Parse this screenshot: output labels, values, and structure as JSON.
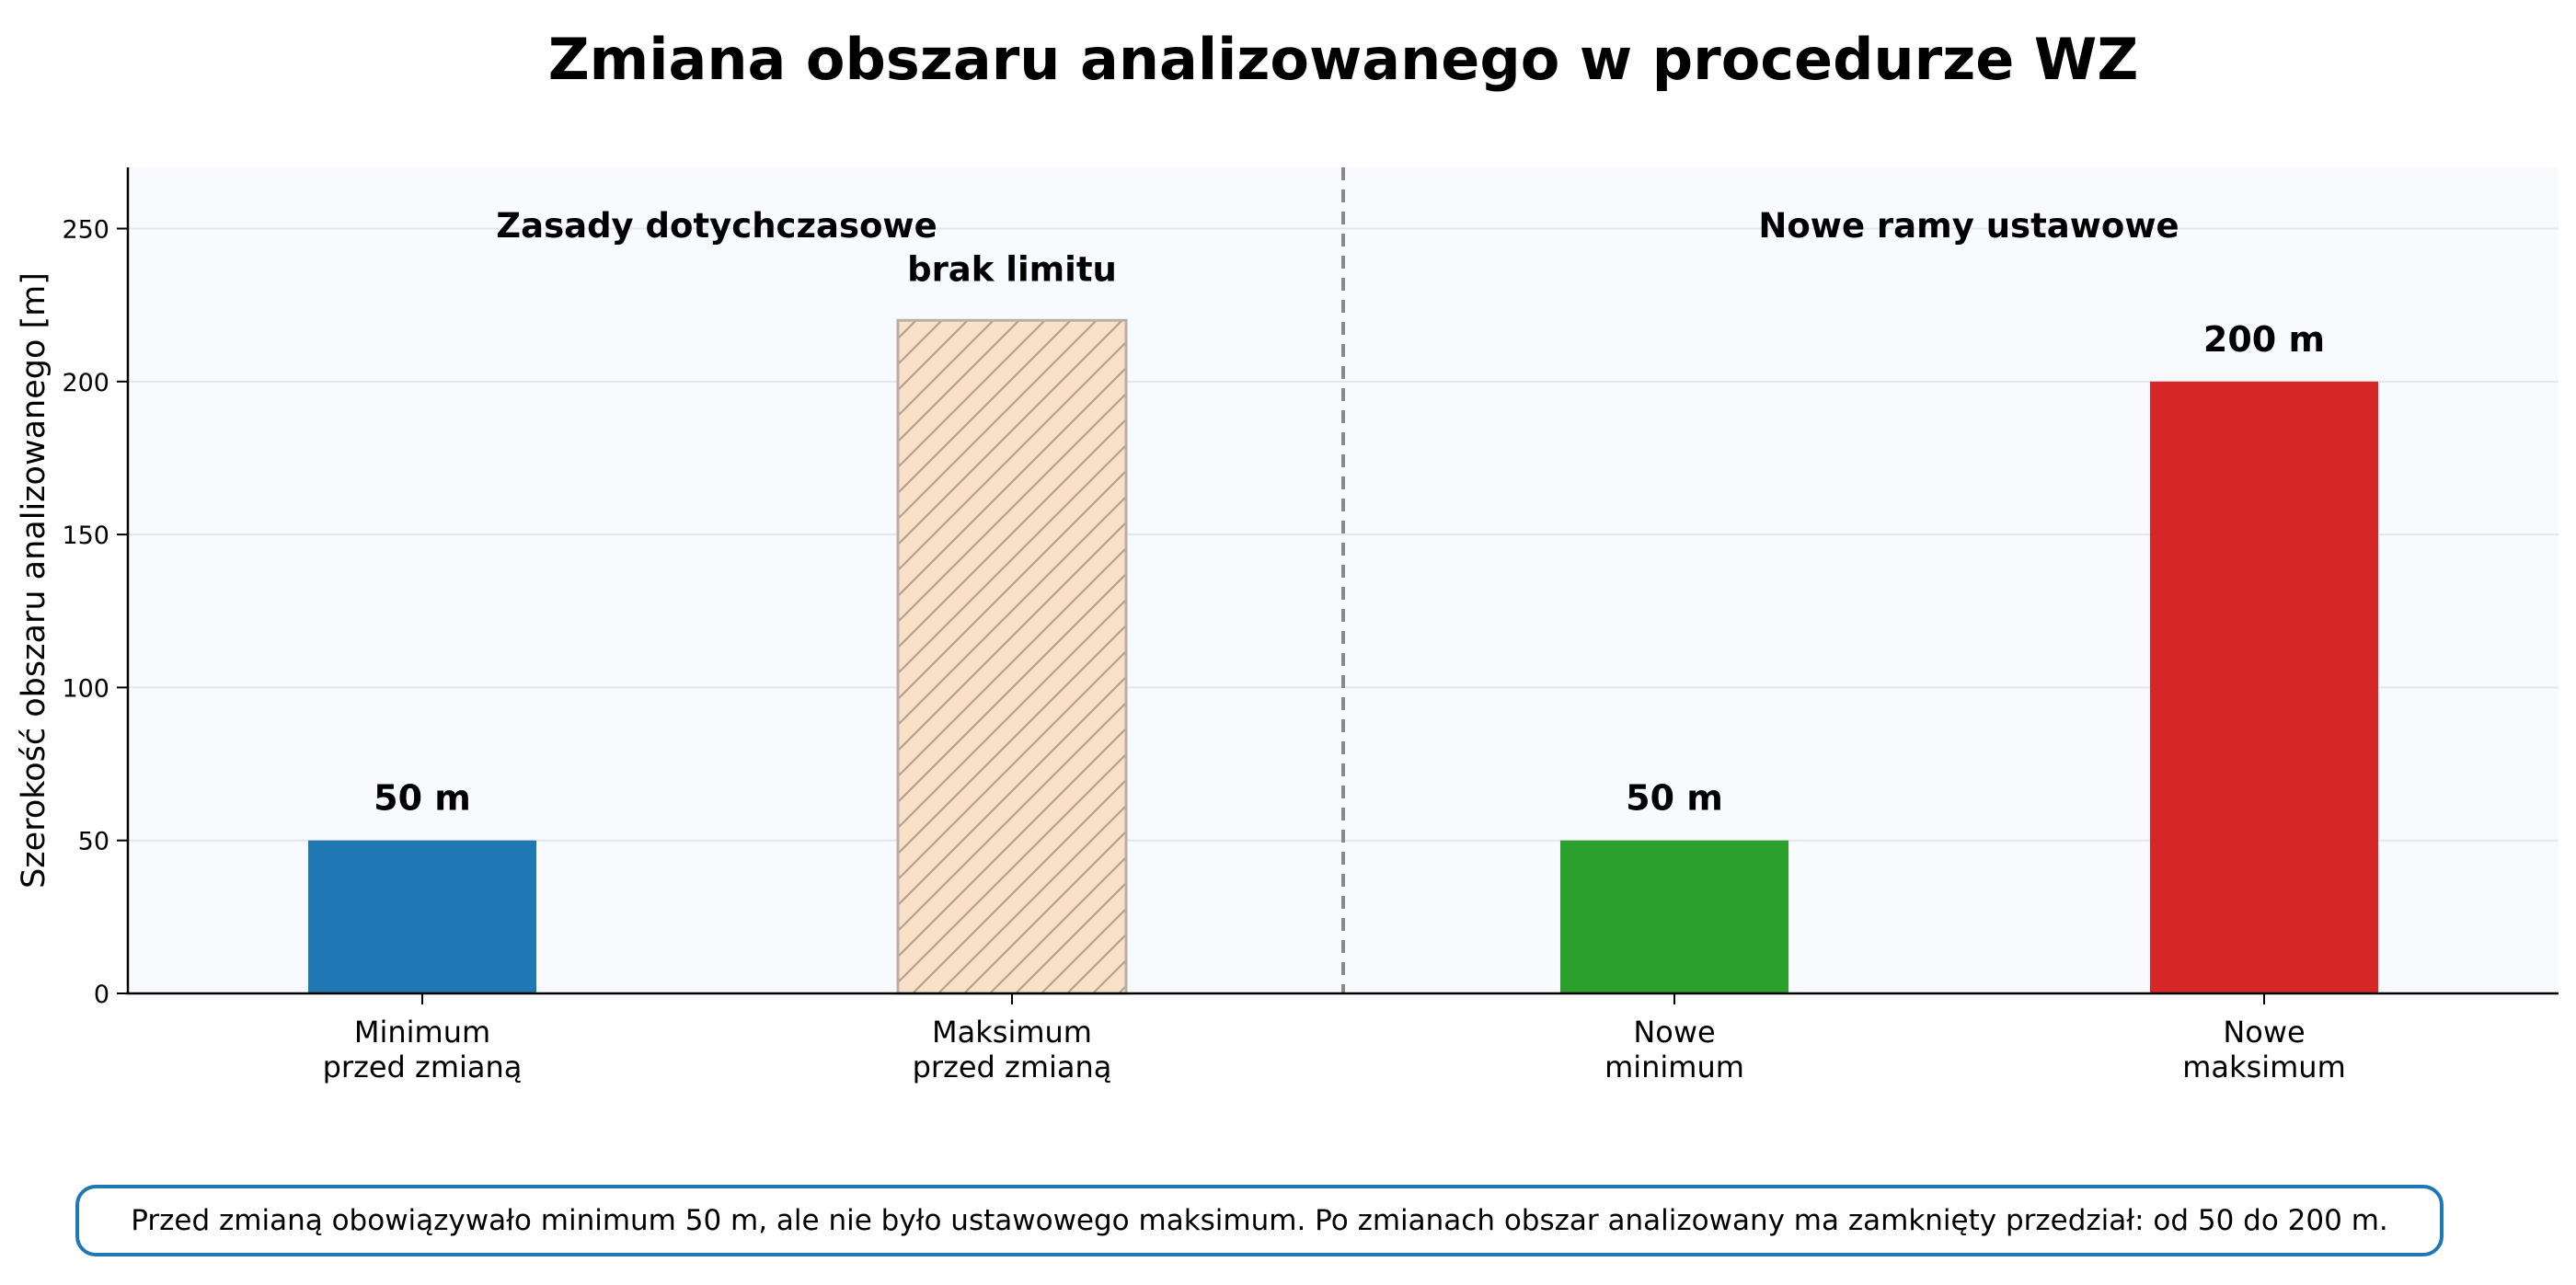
{
  "chart_data": {
    "type": "bar",
    "title": "Zmiana obszaru analizowanego w procedurze WZ",
    "ylabel": "Szerokość obszaru analizowanego [m]",
    "xlabel": "",
    "ylim": [
      0,
      270
    ],
    "yticks": [
      0,
      50,
      100,
      150,
      200,
      250
    ],
    "grid": "horizontal",
    "categories": [
      [
        "Minimum",
        "przed zmianą"
      ],
      [
        "Maksimum",
        "przed zmianą"
      ],
      [
        "Nowe",
        "minimum"
      ],
      [
        "Nowe",
        "maksimum"
      ]
    ],
    "values": [
      50,
      220,
      50,
      200
    ],
    "colors": [
      "#1f77b4",
      "#fbe0c8",
      "#2ca02c",
      "#d62728"
    ],
    "hatched": [
      false,
      true,
      false,
      false
    ],
    "value_labels": [
      "50 m",
      "brak limitu",
      "50 m",
      "200 m"
    ],
    "divider": "dashed vertical line between the two groups",
    "groups": [
      {
        "label": "Zasady dotychczasowe"
      },
      {
        "label": "Nowe ramy ustawowe"
      }
    ]
  },
  "note": "Przed zmianą obowiązywało minimum 50 m, ale nie było ustawowego maksimum. Po zmianach obszar analizowany ma zamknięty przedział: od 50 do 200 m."
}
